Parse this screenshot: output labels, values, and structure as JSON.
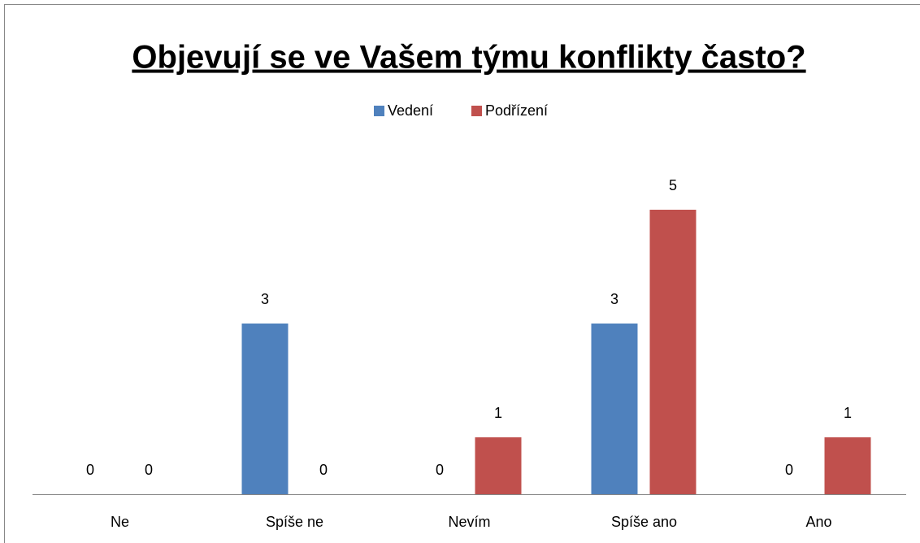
{
  "chart_data": {
    "type": "bar",
    "title": "Objevují se ve Vašem týmu konflikty často?",
    "categories": [
      "Ne",
      "Spíše ne",
      "Nevím",
      "Spíše ano",
      "Ano"
    ],
    "series": [
      {
        "name": "Vedení",
        "color": "#4f81bd",
        "values": [
          0,
          3,
          0,
          3,
          0
        ]
      },
      {
        "name": "Podřízení",
        "color": "#c0504d",
        "values": [
          0,
          0,
          1,
          5,
          1
        ]
      }
    ],
    "ylim": [
      0,
      6
    ],
    "legend": "top"
  }
}
